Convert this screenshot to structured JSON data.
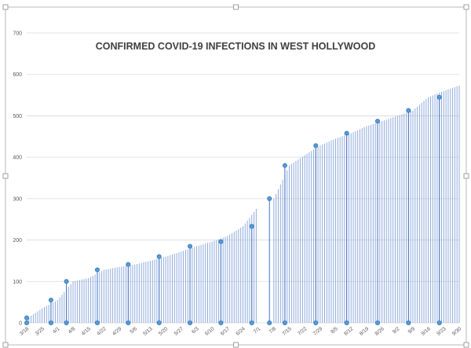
{
  "chart_data": {
    "type": "bar",
    "title": "CONFIRMED COVID-19 INFECTIONS IN WEST HOLLYWOOD",
    "xlabel": "",
    "ylabel": "",
    "ylim": [
      0,
      700
    ],
    "yticks": [
      0,
      100,
      200,
      300,
      400,
      500,
      600,
      700
    ],
    "grid": true,
    "legend": "none",
    "bar_color": "#8faadc",
    "marker_bar_color": "#4472c4",
    "marker_color": "#5b9bd5",
    "x_tick_labels": [
      "3/18",
      "3/25",
      "4/1",
      "4/8",
      "4/15",
      "4/22",
      "4/29",
      "5/6",
      "5/13",
      "5/20",
      "5/27",
      "6/3",
      "6/10",
      "6/17",
      "6/24",
      "7/1",
      "7/8",
      "7/15",
      "7/22",
      "7/29",
      "8/5",
      "8/12",
      "8/19",
      "8/26",
      "9/2",
      "9/9",
      "9/16",
      "9/23",
      "9/30"
    ],
    "anchor_points": [
      {
        "date": "3/18",
        "value": 10
      },
      {
        "date": "3/25",
        "value": 35
      },
      {
        "date": "4/1",
        "value": 55
      },
      {
        "date": "4/8",
        "value": 100
      },
      {
        "date": "4/15",
        "value": 108
      },
      {
        "date": "4/22",
        "value": 128
      },
      {
        "date": "4/29",
        "value": 135
      },
      {
        "date": "5/6",
        "value": 141
      },
      {
        "date": "5/13",
        "value": 150
      },
      {
        "date": "5/20",
        "value": 160
      },
      {
        "date": "5/27",
        "value": 172
      },
      {
        "date": "6/3",
        "value": 185
      },
      {
        "date": "6/10",
        "value": 196
      },
      {
        "date": "6/17",
        "value": 210
      },
      {
        "date": "6/24",
        "value": 233
      },
      {
        "date": "6/30",
        "value": 275
      },
      {
        "date": "7/8",
        "value": 300
      },
      {
        "date": "7/15",
        "value": 380
      },
      {
        "date": "7/22",
        "value": 405
      },
      {
        "date": "7/29",
        "value": 428
      },
      {
        "date": "8/5",
        "value": 445
      },
      {
        "date": "8/12",
        "value": 458
      },
      {
        "date": "8/19",
        "value": 475
      },
      {
        "date": "8/26",
        "value": 487
      },
      {
        "date": "9/2",
        "value": 500
      },
      {
        "date": "9/9",
        "value": 513
      },
      {
        "date": "9/16",
        "value": 545
      },
      {
        "date": "9/23",
        "value": 560
      },
      {
        "date": "9/30",
        "value": 573
      }
    ],
    "gap_start": "7/1",
    "gap_end": "7/7",
    "markers": [
      {
        "date": "3/18",
        "value": 12
      },
      {
        "date": "3/18",
        "value": 0
      },
      {
        "date": "3/29",
        "value": 55
      },
      {
        "date": "3/29",
        "value": 0
      },
      {
        "date": "4/5",
        "value": 100
      },
      {
        "date": "4/5",
        "value": 0
      },
      {
        "date": "4/19",
        "value": 128
      },
      {
        "date": "4/19",
        "value": 0
      },
      {
        "date": "5/3",
        "value": 141
      },
      {
        "date": "5/3",
        "value": 0
      },
      {
        "date": "5/17",
        "value": 160
      },
      {
        "date": "5/17",
        "value": 0
      },
      {
        "date": "5/31",
        "value": 185
      },
      {
        "date": "5/31",
        "value": 0
      },
      {
        "date": "6/14",
        "value": 196
      },
      {
        "date": "6/14",
        "value": 0
      },
      {
        "date": "6/28",
        "value": 233
      },
      {
        "date": "6/28",
        "value": 0
      },
      {
        "date": "7/6",
        "value": 300
      },
      {
        "date": "7/6",
        "value": 0
      },
      {
        "date": "7/13",
        "value": 380
      },
      {
        "date": "7/13",
        "value": 0
      },
      {
        "date": "7/27",
        "value": 428
      },
      {
        "date": "7/27",
        "value": 0
      },
      {
        "date": "8/10",
        "value": 458
      },
      {
        "date": "8/10",
        "value": 0
      },
      {
        "date": "8/24",
        "value": 487
      },
      {
        "date": "8/24",
        "value": 0
      },
      {
        "date": "9/7",
        "value": 513
      },
      {
        "date": "9/7",
        "value": 0
      },
      {
        "date": "9/21",
        "value": 545
      },
      {
        "date": "9/21",
        "value": 0
      }
    ]
  }
}
